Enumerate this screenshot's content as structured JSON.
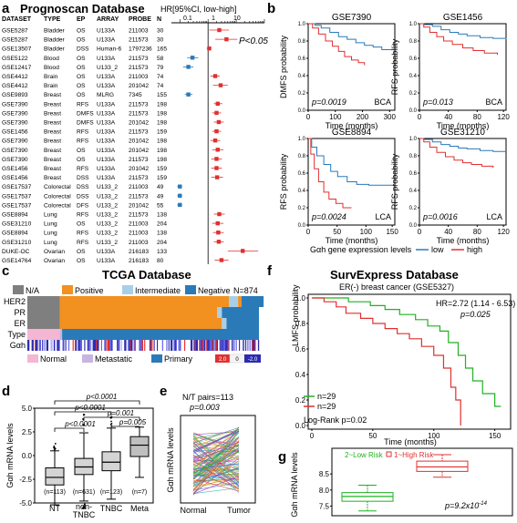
{
  "colors": {
    "red": "#e03030",
    "blue": "#2a7ab8",
    "green": "#22b022",
    "gray": "#7f7f7f",
    "orange": "#f29020",
    "light_blue": "#a8cfe8",
    "pink": "#f4b6d2",
    "purple": "#c8b4e0"
  },
  "panel_a": {
    "label": "a",
    "title": "Prognoscan Database",
    "header": [
      "DATASET",
      "TYPE",
      "EP",
      "ARRAY",
      "PROBE",
      "N"
    ],
    "axis_title": "HR[95%CI, low-high]",
    "ticks": [
      "0.1",
      "1",
      "10"
    ],
    "pval": "P<0.05",
    "rows": [
      [
        "GSE5287",
        "Bladder",
        "OS",
        "U133A",
        "211003",
        "30"
      ],
      [
        "GSE5287",
        "Bladder",
        "OS",
        "U133A",
        "211573",
        "30"
      ],
      [
        "GSE13507",
        "Bladder",
        "DSS",
        "Human-6",
        "1797236",
        "165"
      ],
      [
        "GSE5122",
        "Blood",
        "OS",
        "U133A",
        "211573",
        "58"
      ],
      [
        "GSE12417",
        "Blood",
        "OS",
        "U133_2",
        "211573",
        "79"
      ],
      [
        "GSE4412",
        "Brain",
        "OS",
        "U133A",
        "211003",
        "74"
      ],
      [
        "GSE4412",
        "Brain",
        "OS",
        "U133A",
        "201042",
        "74"
      ],
      [
        "GSE9893",
        "Breast",
        "OS",
        "MLRG",
        "7345",
        "155"
      ],
      [
        "GSE7390",
        "Breast",
        "RFS",
        "U133A",
        "211573",
        "198"
      ],
      [
        "GSE7390",
        "Breast",
        "DMFS",
        "U133A",
        "211573",
        "198"
      ],
      [
        "GSE7390",
        "Breast",
        "DMFS",
        "U133A",
        "201042",
        "198"
      ],
      [
        "GSE1456",
        "Breast",
        "RFS",
        "U133A",
        "211573",
        "159"
      ],
      [
        "GSE7390",
        "Breast",
        "RFS",
        "U133A",
        "201042",
        "198"
      ],
      [
        "GSE7390",
        "Breast",
        "OS",
        "U133A",
        "201042",
        "198"
      ],
      [
        "GSE7390",
        "Breast",
        "OS",
        "U133A",
        "211573",
        "198"
      ],
      [
        "GSE1456",
        "Breast",
        "RFS",
        "U133A",
        "201042",
        "159"
      ],
      [
        "GSE1456",
        "Breast",
        "DSS",
        "U133A",
        "211573",
        "159"
      ],
      [
        "GSE17537",
        "Colorectal",
        "DSS",
        "U133_2",
        "211003",
        "49"
      ],
      [
        "GSE17537",
        "Colorectal",
        "DSS",
        "U133_2",
        "211573",
        "49"
      ],
      [
        "GSE17537",
        "Colorectal",
        "DFS",
        "U133_2",
        "201042",
        "55"
      ],
      [
        "GSE8894",
        "Lung",
        "RFS",
        "U133_2",
        "211573",
        "138"
      ],
      [
        "GSE31210",
        "Lung",
        "OS",
        "U133_2",
        "211003",
        "204"
      ],
      [
        "GSE8894",
        "Lung",
        "RFS",
        "U133_2",
        "211003",
        "138"
      ],
      [
        "GSE31210",
        "Lung",
        "RFS",
        "U133_2",
        "211003",
        "204"
      ],
      [
        "DUKE-OC",
        "Ovarian",
        "OS",
        "U133A",
        "216183",
        "133"
      ],
      [
        "GSE14764",
        "Ovarian",
        "OS",
        "U133A",
        "216183",
        "80"
      ]
    ],
    "hr": [
      2.5,
      4.5,
      1.1,
      0.28,
      0.2,
      1.8,
      2.8,
      0.2,
      2.2,
      2.0,
      2.4,
      2.0,
      1.8,
      2.2,
      2.0,
      2.0,
      2.1,
      0.1,
      0.1,
      0.1,
      2.5,
      2.2,
      2.3,
      2.4,
      17,
      3.0
    ],
    "lo": [
      1.1,
      1.8,
      0.9,
      0.18,
      0.13,
      1.2,
      1.5,
      0.15,
      1.6,
      1.4,
      1.6,
      1.4,
      1.2,
      1.4,
      1.3,
      1.3,
      1.3,
      0.08,
      0.08,
      0.08,
      1.6,
      1.4,
      1.5,
      1.6,
      5,
      1.7
    ],
    "hi": [
      5.5,
      11,
      1.3,
      0.45,
      0.3,
      2.6,
      5,
      0.28,
      3.2,
      2.9,
      3.6,
      2.9,
      2.7,
      3.5,
      3.1,
      3.1,
      3.4,
      0.12,
      0.12,
      0.12,
      3.9,
      3.5,
      3.6,
      3.6,
      60,
      5.3
    ]
  },
  "panel_b": {
    "label": "b",
    "plots": [
      {
        "title": "GSE7390",
        "ylabel": "DMFS probability",
        "pval": "p=0.0019",
        "tag": "BCA",
        "xticks": [
          "0",
          "100",
          "200",
          "300"
        ],
        "xmax": 300
      },
      {
        "title": "GSE1456",
        "ylabel": "RFS probability",
        "pval": "p=0.013",
        "tag": "BCA",
        "xticks": [
          "0",
          "40",
          "80",
          "120"
        ],
        "xmax": 120
      },
      {
        "title": "GSE8894",
        "ylabel": "RFS probability",
        "pval": "p=0.0024",
        "tag": "LCA",
        "xticks": [
          "0",
          "50",
          "100",
          "150"
        ],
        "xmax": 150
      },
      {
        "title": "GSE31210",
        "ylabel": "RFS probability",
        "pval": "p=0.0016",
        "tag": "LCA",
        "xticks": [
          "0",
          "40",
          "80",
          "120"
        ],
        "xmax": 120
      }
    ],
    "yticks": [
      "0.0",
      "0.2",
      "0.4",
      "0.6",
      "0.8",
      "1.0"
    ],
    "xlabel": "Time (months)",
    "legend_title": "Gαh gene expression levels",
    "legend_low": "low",
    "legend_high": "high"
  },
  "panel_c": {
    "label": "c",
    "title": "TCGA Database",
    "n": "N=874",
    "legend_top": [
      "N/A",
      "Positive",
      "Intermediate",
      "Negative"
    ],
    "rows": [
      "HER2",
      "PR",
      "ER",
      "Type",
      "Gαh"
    ],
    "legend_bottom": [
      "Normal",
      "Metastatic",
      "Primary"
    ],
    "scale": [
      "2.0",
      "0",
      "-2.0"
    ]
  },
  "panel_d": {
    "label": "d",
    "ylabel": "Gαh mRNA levels",
    "yticks": [
      "5.0",
      "2.5",
      "0.0",
      "-2.5",
      "-5.0"
    ],
    "groups": [
      "NT",
      "non-TNBC",
      "TNBC",
      "Meta"
    ],
    "ns": [
      "(n=113)",
      "(n=631)",
      "(n=123)",
      "(n=7)"
    ],
    "pvals": [
      "p<0.0001",
      "p<0.0001",
      "p=0.001",
      "p<0.0001",
      "p=0.005"
    ],
    "box": [
      {
        "q1": -3.1,
        "med": -2.3,
        "q3": -1.3,
        "wl": -5.2,
        "wh": 0.5
      },
      {
        "q1": -2.0,
        "med": -1.2,
        "q3": -0.3,
        "wl": -4.8,
        "wh": 2.4
      },
      {
        "q1": -1.6,
        "med": -0.7,
        "q3": 0.4,
        "wl": -4.6,
        "wh": 2.9
      },
      {
        "q1": -0.1,
        "med": 1.1,
        "q3": 2.0,
        "wl": -2.3,
        "wh": 3.0
      }
    ]
  },
  "panel_e": {
    "label": "e",
    "ylabel": "Gαh mRNA levels",
    "title": "N/T pairs=113",
    "pval": "p=0.003",
    "groups": [
      "Normal",
      "Tumor"
    ]
  },
  "panel_f": {
    "label": "f",
    "title": "SurvExpress Database",
    "subtitle": "ER(-) breast cancer (GSE5327)",
    "hr": "HR=2.72 (1.14 - 6.53)",
    "pval": "p=0.025",
    "ylabel": "LMFS probability",
    "xlabel": "Time (months)",
    "yticks": [
      "1.0",
      "0.8",
      "0.6",
      "0.4",
      "0.2",
      "0.0"
    ],
    "xticks": [
      "0",
      "50",
      "100",
      "150"
    ],
    "n1": "n=29",
    "n2": "n=29",
    "logrank": "Log-Rank p=0.02"
  },
  "panel_g": {
    "label": "g",
    "ylabel": "Gαh mRNA levels",
    "yticks": [
      "8.5",
      "8.0",
      "7.5"
    ],
    "legend_low": "2~Low Risk",
    "legend_high": "1~High Risk",
    "pval": "p=9.2x10",
    "pval_exp": "-14",
    "box": [
      {
        "q1": 7.65,
        "med": 7.8,
        "q3": 7.92,
        "wl": 7.35,
        "wh": 8.15
      },
      {
        "q1": 8.58,
        "med": 8.72,
        "q3": 8.9,
        "wl": 8.4,
        "wh": 9.1
      }
    ]
  }
}
